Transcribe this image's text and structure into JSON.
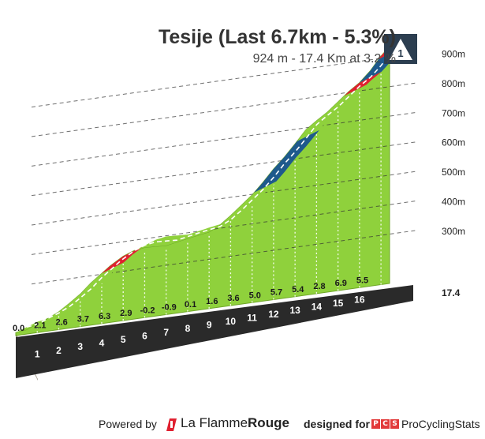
{
  "title": "Tesije (Last 6.7km - 5.3%)",
  "subtitle": "924 m - 17.4 Km at 3.2 %",
  "finish_marker": {
    "icon": "finish-flag-icon",
    "label": "1"
  },
  "footer": {
    "powered_label": "Powered by",
    "brand_prefix": "La Flamme",
    "brand_suffix": "Rouge",
    "designed_label": "designed for",
    "pcs_letters": [
      "P",
      "C",
      "S"
    ],
    "pcs_name": "ProCyclingStats"
  },
  "colors": {
    "easy": "#8fd13c",
    "moderate": "#1e5a8c",
    "hard": "#e02030",
    "base": "#2a2a2a",
    "wall": "#a0988c",
    "accent": "#e23a3a"
  },
  "chart_data": {
    "type": "area",
    "xlabel": "",
    "ylabel": "",
    "x_ticks": [
      "1",
      "2",
      "3",
      "4",
      "5",
      "6",
      "7",
      "8",
      "9",
      "10",
      "11",
      "12",
      "13",
      "14",
      "15",
      "16"
    ],
    "total_distance_label": "17.4",
    "total_distance_km": 17.4,
    "y_ticks": [
      "300m",
      "400m",
      "500m",
      "600m",
      "700m",
      "800m",
      "900m"
    ],
    "y_tick_values": [
      300,
      400,
      500,
      600,
      700,
      800,
      900
    ],
    "ylim": [
      120,
      960
    ],
    "grid": true,
    "km_gradients": [
      "0.0",
      "2.1",
      "2.6",
      "3.7",
      "6.3",
      "2.9",
      "-0.2",
      "-0.9",
      "0.1",
      "1.6",
      "3.6",
      "5.0",
      "5.7",
      "5.4",
      "2.8",
      "6.9",
      "5.5"
    ],
    "gradient_ranges": {
      "easy": "< 6%",
      "moderate": "6-7%",
      "hard": "> 7%"
    },
    "profile": {
      "x_km": [
        0.0,
        0.5,
        1.0,
        1.5,
        2.0,
        2.5,
        3.0,
        3.5,
        4.0,
        4.4,
        5.0,
        5.5,
        6.0,
        7.0,
        8.0,
        9.0,
        9.5,
        10.0,
        10.5,
        11.0,
        11.5,
        12.0,
        12.5,
        13.0,
        13.5,
        14.0,
        14.5,
        15.0,
        15.5,
        16.0,
        16.5,
        17.0,
        17.4
      ],
      "elevation_m": [
        130,
        135,
        150,
        163,
        180,
        204,
        230,
        263,
        290,
        312,
        338,
        352,
        358,
        354,
        368,
        380,
        398,
        425,
        455,
        485,
        522,
        563,
        598,
        638,
        680,
        706,
        730,
        760,
        790,
        815,
        850,
        895,
        924
      ],
      "segments": [
        {
          "from_km": 0.0,
          "to_km": 2.8,
          "level": "easy"
        },
        {
          "from_km": 2.8,
          "to_km": 4.0,
          "level": "easy"
        },
        {
          "from_km": 4.0,
          "to_km": 5.0,
          "level": "hard"
        },
        {
          "from_km": 5.0,
          "to_km": 11.1,
          "level": "easy"
        },
        {
          "from_km": 11.1,
          "to_km": 13.1,
          "level": "moderate"
        },
        {
          "from_km": 13.1,
          "to_km": 15.3,
          "level": "easy"
        },
        {
          "from_km": 15.3,
          "to_km": 16.0,
          "level": "hard"
        },
        {
          "from_km": 16.0,
          "to_km": 16.9,
          "level": "moderate"
        },
        {
          "from_km": 16.9,
          "to_km": 17.4,
          "level": "hard"
        }
      ]
    }
  }
}
